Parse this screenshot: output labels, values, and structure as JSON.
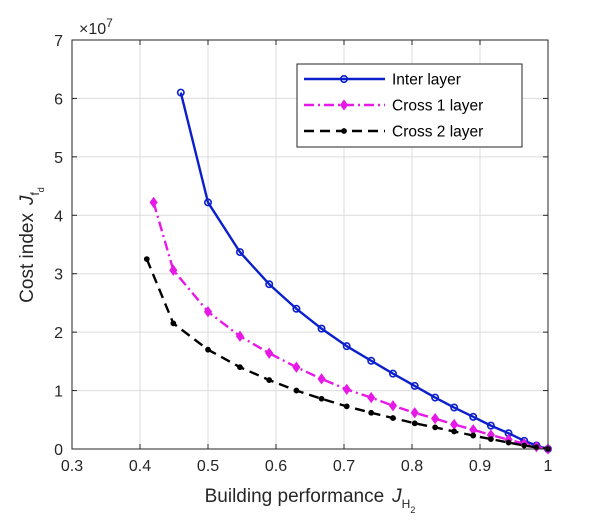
{
  "chart_data": {
    "type": "line",
    "xlabel": {
      "main": "Building performance",
      "symbol": "J",
      "subscript": "H",
      "subsubscript": "2"
    },
    "ylabel": {
      "main": "Cost index",
      "symbol": "J",
      "subscript": "f",
      "subsubscript": "d"
    },
    "xlim": [
      0.3,
      1.0
    ],
    "ylim": [
      0,
      7
    ],
    "xticks": [
      "0.3",
      "0.4",
      "0.5",
      "0.6",
      "0.7",
      "0.8",
      "0.9",
      "1"
    ],
    "yticks": [
      "0",
      "1",
      "2",
      "3",
      "4",
      "5",
      "6",
      "7"
    ],
    "y_exponent": {
      "base": "×10",
      "power": "7"
    },
    "grid": true,
    "legend_position": "top-right",
    "series": [
      {
        "name": "Inter layer",
        "color": "#0b1fcc",
        "line_style": "solid",
        "marker": "circle",
        "x": [
          0.46,
          0.5,
          0.547,
          0.59,
          0.63,
          0.667,
          0.704,
          0.74,
          0.772,
          0.804,
          0.834,
          0.862,
          0.89,
          0.916,
          0.942,
          0.965,
          0.983,
          1.0
        ],
        "y": [
          6.1,
          4.22,
          3.37,
          2.82,
          2.4,
          2.06,
          1.76,
          1.51,
          1.29,
          1.08,
          0.88,
          0.71,
          0.55,
          0.4,
          0.27,
          0.14,
          0.06,
          0.0
        ]
      },
      {
        "name": "Cross 1 layer",
        "color": "#e619e6",
        "line_style": "dashdot",
        "marker": "diamond",
        "x": [
          0.42,
          0.449,
          0.5,
          0.547,
          0.59,
          0.63,
          0.667,
          0.704,
          0.74,
          0.772,
          0.804,
          0.834,
          0.862,
          0.89,
          0.916,
          0.942,
          0.965,
          0.983,
          1.0
        ],
        "y": [
          4.22,
          3.06,
          2.35,
          1.93,
          1.64,
          1.4,
          1.2,
          1.02,
          0.88,
          0.74,
          0.62,
          0.52,
          0.42,
          0.33,
          0.24,
          0.16,
          0.09,
          0.04,
          0.0
        ]
      },
      {
        "name": "Cross 2 layer",
        "color": "#000000",
        "line_style": "dashed",
        "marker": "dot",
        "x": [
          0.41,
          0.449,
          0.5,
          0.547,
          0.59,
          0.63,
          0.667,
          0.704,
          0.74,
          0.772,
          0.804,
          0.834,
          0.862,
          0.89,
          0.916,
          0.942,
          0.965,
          0.983,
          1.0
        ],
        "y": [
          3.25,
          2.15,
          1.7,
          1.4,
          1.18,
          1.0,
          0.86,
          0.73,
          0.62,
          0.53,
          0.44,
          0.37,
          0.3,
          0.23,
          0.17,
          0.11,
          0.06,
          0.03,
          0.0
        ]
      }
    ]
  }
}
